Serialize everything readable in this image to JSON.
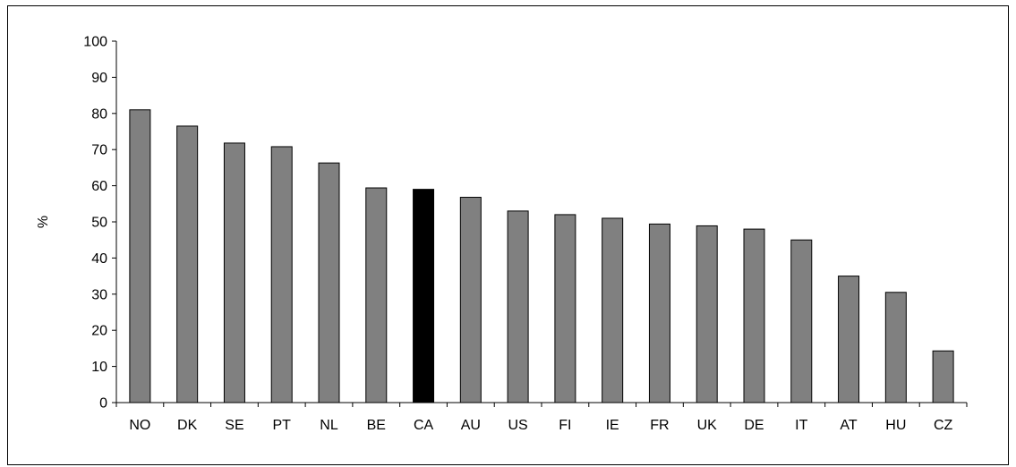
{
  "chart_data": {
    "type": "bar",
    "title": "",
    "xlabel": "",
    "ylabel": "%",
    "ylim": [
      0,
      100
    ],
    "yticks": [
      0,
      10,
      20,
      30,
      40,
      50,
      60,
      70,
      80,
      90,
      100
    ],
    "categories": [
      "NO",
      "DK",
      "SE",
      "PT",
      "NL",
      "BE",
      "CA",
      "AU",
      "US",
      "FI",
      "IE",
      "FR",
      "UK",
      "DE",
      "IT",
      "AT",
      "HU",
      "CZ"
    ],
    "values": [
      81,
      76.5,
      71.8,
      70.8,
      66.3,
      59.4,
      59,
      56.8,
      53,
      52,
      51,
      49.4,
      48.9,
      48,
      45,
      35,
      30.5,
      14.3
    ],
    "highlight_category": "CA",
    "colors": {
      "bar": "#808080",
      "highlight": "#000000",
      "outline": "#000000"
    },
    "grid": false,
    "legend": "none"
  }
}
